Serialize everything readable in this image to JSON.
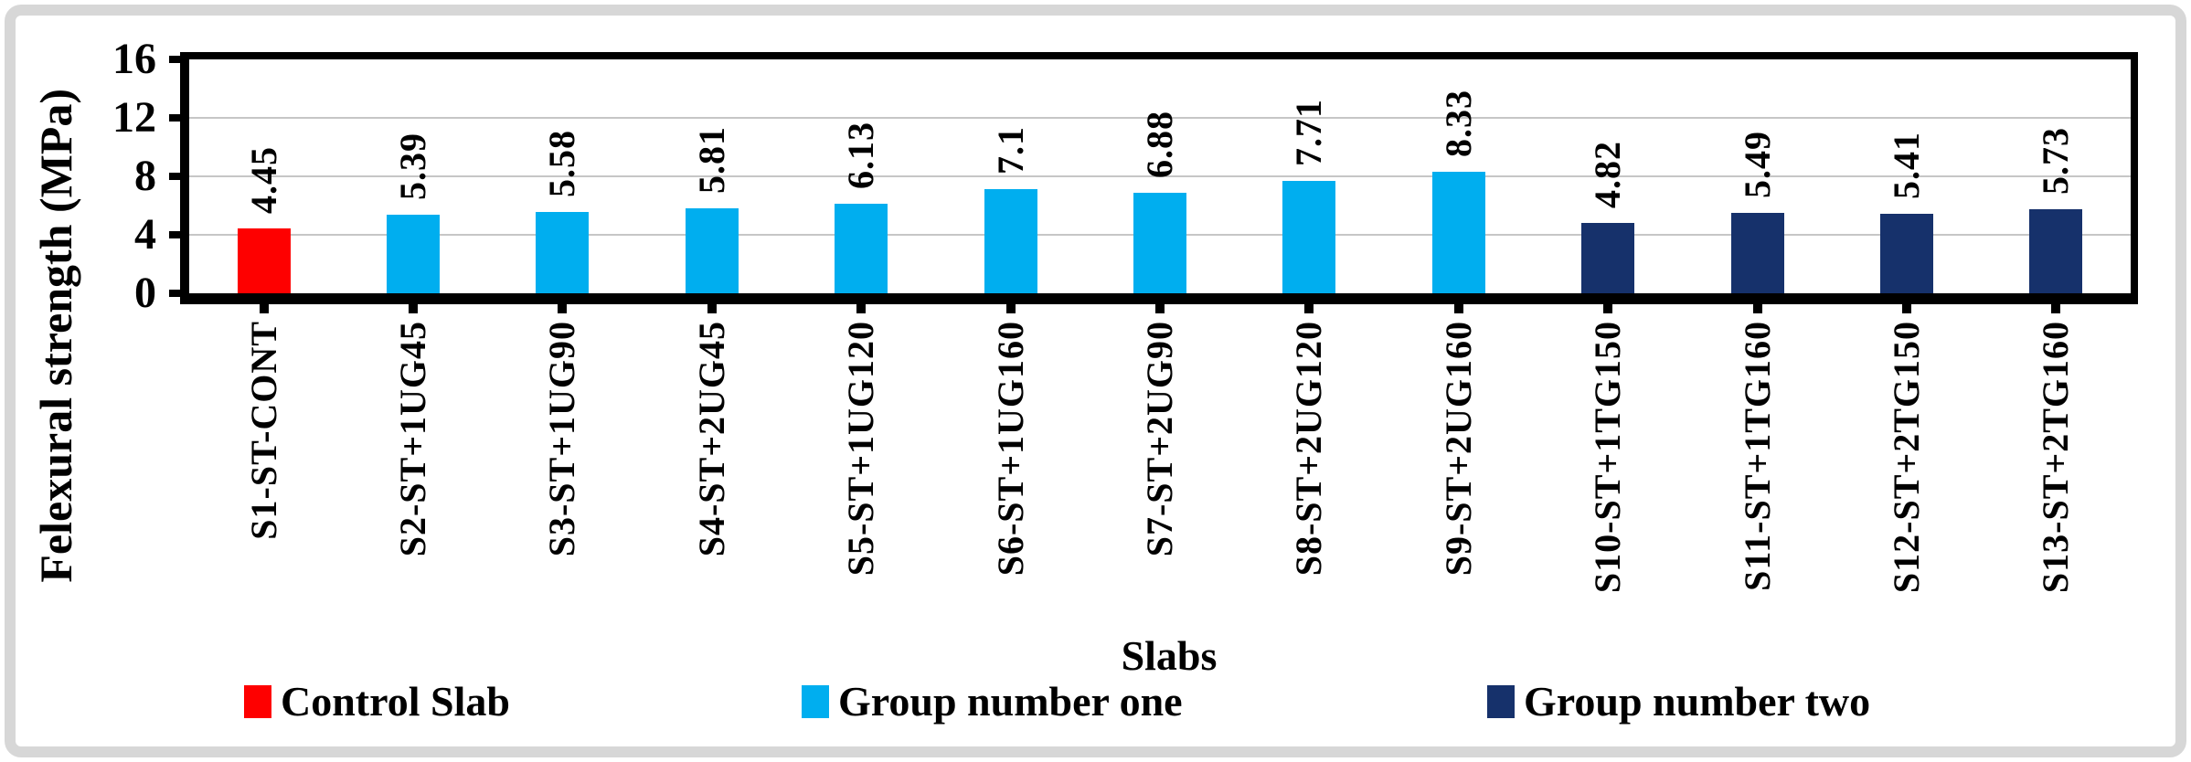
{
  "chart_data": {
    "type": "bar",
    "title": "",
    "ylabel": "Felexural strength (MPa)",
    "xlabel": "Slabs",
    "ylim": [
      0,
      16
    ],
    "yticks": [
      0,
      4,
      8,
      12,
      16
    ],
    "grid": true,
    "legend_position": "bottom",
    "value_labels_rotated": true,
    "series": [
      {
        "name": "Control Slab",
        "color": "#FE0000"
      },
      {
        "name": "Group number one",
        "color": "#00AEEF"
      },
      {
        "name": "Group number two",
        "color": "#16316B"
      }
    ],
    "bars": [
      {
        "category": "S1-ST-CONT",
        "value": 4.45,
        "series": "Control Slab"
      },
      {
        "category": "S2-ST+1UG45",
        "value": 5.39,
        "series": "Group number one"
      },
      {
        "category": "S3-ST+1UG90",
        "value": 5.58,
        "series": "Group number one"
      },
      {
        "category": "S4-ST+2UG45",
        "value": 5.81,
        "series": "Group number one"
      },
      {
        "category": "S5-ST+1UG120",
        "value": 6.13,
        "series": "Group number one"
      },
      {
        "category": "S6-ST+1UG160",
        "value": 7.1,
        "series": "Group number one"
      },
      {
        "category": "S7-ST+2UG90",
        "value": 6.88,
        "series": "Group number one"
      },
      {
        "category": "S8-ST+2UG120",
        "value": 7.71,
        "series": "Group number one"
      },
      {
        "category": "S9-ST+2UG160",
        "value": 8.33,
        "series": "Group number one"
      },
      {
        "category": "S10-ST+1TG150",
        "value": 4.82,
        "series": "Group number two"
      },
      {
        "category": "S11-ST+1TG160",
        "value": 5.49,
        "series": "Group number two"
      },
      {
        "category": "S12-ST+2TG150",
        "value": 5.41,
        "series": "Group number two"
      },
      {
        "category": "S13-ST+2TG160",
        "value": 5.73,
        "series": "Group number two"
      }
    ]
  }
}
